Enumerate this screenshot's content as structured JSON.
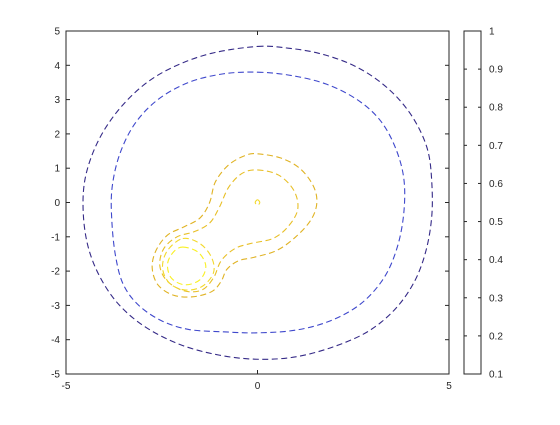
{
  "chart_data": {
    "type": "contour",
    "line_style": "dashed",
    "colormap": "parula",
    "xlim": [
      -5,
      5
    ],
    "ylim": [
      -5,
      5
    ],
    "x_ticks": [
      -5,
      0,
      5
    ],
    "y_ticks": [
      5,
      4,
      3,
      2,
      1,
      0,
      -1,
      -2,
      -3,
      -4,
      -5
    ],
    "grid": false,
    "colorbar": {
      "position": "right",
      "limits": [
        0.1,
        1
      ],
      "ticks": [
        1,
        0.9,
        0.8,
        0.7,
        0.6,
        0.5,
        0.4,
        0.3,
        0.2,
        0.1
      ]
    },
    "contours": [
      {
        "level": 0.1,
        "color": "#352a87",
        "paths": [
          [
            [
              0,
              4.55
            ],
            [
              0.8,
              4.5
            ],
            [
              1.6,
              4.35
            ],
            [
              2.4,
              4.05
            ],
            [
              3.1,
              3.6
            ],
            [
              3.7,
              3.0
            ],
            [
              4.15,
              2.3
            ],
            [
              4.45,
              1.5
            ],
            [
              4.55,
              0.6
            ],
            [
              4.55,
              -0.4
            ],
            [
              4.4,
              -1.4
            ],
            [
              4.1,
              -2.3
            ],
            [
              3.6,
              -3.1
            ],
            [
              2.9,
              -3.75
            ],
            [
              2.0,
              -4.2
            ],
            [
              1.0,
              -4.5
            ],
            [
              0,
              -4.57
            ],
            [
              -1.0,
              -4.45
            ],
            [
              -2.0,
              -4.15
            ],
            [
              -2.9,
              -3.65
            ],
            [
              -3.6,
              -3.0
            ],
            [
              -4.1,
              -2.2
            ],
            [
              -4.42,
              -1.3
            ],
            [
              -4.55,
              -0.3
            ],
            [
              -4.5,
              0.7
            ],
            [
              -4.2,
              1.7
            ],
            [
              -3.7,
              2.6
            ],
            [
              -3.0,
              3.4
            ],
            [
              -2.2,
              3.95
            ],
            [
              -1.2,
              4.35
            ],
            [
              0,
              4.55
            ]
          ]
        ]
      },
      {
        "level": 0.2,
        "color": "#3f48cc",
        "paths": [
          [
            [
              0,
              3.8
            ],
            [
              0.9,
              3.7
            ],
            [
              1.8,
              3.45
            ],
            [
              2.6,
              3.0
            ],
            [
              3.2,
              2.4
            ],
            [
              3.6,
              1.6
            ],
            [
              3.82,
              0.7
            ],
            [
              3.82,
              -0.3
            ],
            [
              3.65,
              -1.3
            ],
            [
              3.3,
              -2.2
            ],
            [
              2.7,
              -2.95
            ],
            [
              1.9,
              -3.45
            ],
            [
              1.0,
              -3.72
            ],
            [
              0,
              -3.8
            ],
            [
              -0.9,
              -3.77
            ],
            [
              -1.8,
              -3.7
            ],
            [
              -2.5,
              -3.45
            ],
            [
              -3.1,
              -3.0
            ],
            [
              -3.5,
              -2.4
            ],
            [
              -3.7,
              -1.6
            ],
            [
              -3.8,
              -0.6
            ],
            [
              -3.8,
              0.4
            ],
            [
              -3.6,
              1.4
            ],
            [
              -3.2,
              2.3
            ],
            [
              -2.6,
              3.0
            ],
            [
              -1.8,
              3.5
            ],
            [
              -0.9,
              3.75
            ],
            [
              0,
              3.8
            ]
          ]
        ]
      },
      {
        "level": 0.8,
        "color": "#e0b324",
        "paths": [
          [
            [
              0,
              1.42
            ],
            [
              0.6,
              1.3
            ],
            [
              1.1,
              1.0
            ],
            [
              1.45,
              0.5
            ],
            [
              1.55,
              0
            ],
            [
              1.4,
              -0.5
            ],
            [
              1.0,
              -1.0
            ],
            [
              0.5,
              -1.4
            ],
            [
              -0.1,
              -1.6
            ],
            [
              -0.5,
              -1.7
            ],
            [
              -0.8,
              -1.95
            ],
            [
              -0.95,
              -2.3
            ],
            [
              -1.2,
              -2.6
            ],
            [
              -1.7,
              -2.75
            ],
            [
              -2.2,
              -2.7
            ],
            [
              -2.6,
              -2.4
            ],
            [
              -2.75,
              -1.9
            ],
            [
              -2.65,
              -1.4
            ],
            [
              -2.35,
              -0.95
            ],
            [
              -1.9,
              -0.7
            ],
            [
              -1.5,
              -0.45
            ],
            [
              -1.25,
              0
            ],
            [
              -1.1,
              0.6
            ],
            [
              -0.75,
              1.1
            ],
            [
              -0.3,
              1.38
            ],
            [
              0,
              1.42
            ]
          ]
        ]
      },
      {
        "level": 0.85,
        "color": "#e8bf26",
        "paths": [
          [
            [
              0,
              0.95
            ],
            [
              0.55,
              0.8
            ],
            [
              0.95,
              0.35
            ],
            [
              1.05,
              -0.2
            ],
            [
              0.8,
              -0.7
            ],
            [
              0.4,
              -1.05
            ],
            [
              -0.2,
              -1.2
            ],
            [
              -0.6,
              -1.35
            ],
            [
              -0.95,
              -1.7
            ],
            [
              -1.15,
              -2.2
            ],
            [
              -1.45,
              -2.55
            ],
            [
              -1.9,
              -2.58
            ],
            [
              -2.35,
              -2.3
            ],
            [
              -2.55,
              -1.85
            ],
            [
              -2.45,
              -1.35
            ],
            [
              -2.1,
              -1.0
            ],
            [
              -1.65,
              -0.85
            ],
            [
              -1.25,
              -0.6
            ],
            [
              -1.0,
              -0.15
            ],
            [
              -0.75,
              0.45
            ],
            [
              -0.4,
              0.85
            ],
            [
              0,
              0.95
            ]
          ]
        ]
      },
      {
        "level": 0.9,
        "color": "#f3d92c",
        "paths": [
          [
            [
              -1.95,
              -1.05
            ],
            [
              -1.5,
              -1.2
            ],
            [
              -1.2,
              -1.6
            ],
            [
              -1.15,
              -2.05
            ],
            [
              -1.45,
              -2.45
            ],
            [
              -1.9,
              -2.55
            ],
            [
              -2.3,
              -2.35
            ],
            [
              -2.48,
              -1.9
            ],
            [
              -2.35,
              -1.4
            ],
            [
              -1.95,
              -1.05
            ]
          ],
          [
            [
              0,
              0.08
            ],
            [
              0.06,
              0.0
            ],
            [
              0,
              -0.08
            ],
            [
              -0.06,
              0.0
            ],
            [
              0,
              0.08
            ]
          ]
        ]
      },
      {
        "level": 0.95,
        "color": "#f9f024",
        "paths": [
          [
            [
              -1.95,
              -1.3
            ],
            [
              -1.55,
              -1.45
            ],
            [
              -1.35,
              -1.85
            ],
            [
              -1.5,
              -2.25
            ],
            [
              -1.9,
              -2.4
            ],
            [
              -2.25,
              -2.2
            ],
            [
              -2.35,
              -1.8
            ],
            [
              -2.2,
              -1.45
            ],
            [
              -1.95,
              -1.3
            ]
          ]
        ]
      }
    ]
  }
}
